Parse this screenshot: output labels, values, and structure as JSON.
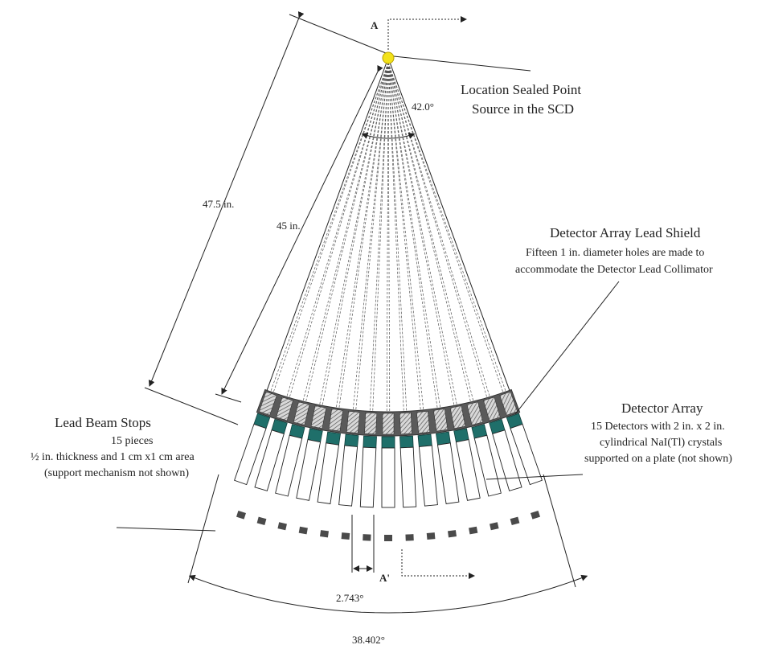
{
  "labels": {
    "section_top": "A",
    "section_bottom": "A'",
    "source_title_1": "Location Sealed Point",
    "source_title_2": "Source in the SCD",
    "angle_apex": "42.0°",
    "dim_outer": "47.5 in.",
    "dim_inner": "45 in.",
    "shield_title": "Detector Array Lead Shield",
    "shield_desc_1": "Fifteen 1 in. diameter holes  are made to",
    "shield_desc_2": "accommodate the Detector Lead Collimator",
    "array_title": "Detector Array",
    "array_desc_1": "15 Detectors with 2 in. x 2 in.",
    "array_desc_2": "cylindrical NaI(Tl) crystals",
    "array_desc_3": "supported on a plate (not shown)",
    "stops_title": "Lead Beam Stops",
    "stops_desc_1": "15 pieces",
    "stops_desc_2": "½ in. thickness and 1 cm x1 cm area",
    "stops_desc_3": "(support mechanism not shown)",
    "angle_small": "2.743°",
    "angle_bottom": "38.402°"
  },
  "geometry": {
    "detector_count": 15,
    "beam_stop_count": 15,
    "apex_angle_deg": 42.0,
    "detector_pitch_deg": 2.743,
    "array_span_deg": 38.402
  },
  "colors": {
    "source": "#f2e21a",
    "shield": "#5a5a5a",
    "crystal": "#1f6f6a",
    "stop": "#4a4a4a",
    "line": "#222222"
  }
}
